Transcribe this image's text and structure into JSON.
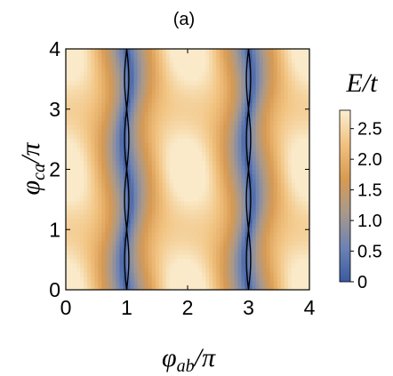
{
  "chart_data": {
    "type": "heatmap",
    "panel_label": "(a)",
    "xlabel": {
      "base": "φ",
      "sub": "ab",
      "rest": "/π"
    },
    "ylabel": {
      "base": "φ",
      "sub": "ca",
      "rest": "/π"
    },
    "colorbar_title": "E/t",
    "xlim": [
      0,
      4
    ],
    "ylim": [
      0,
      4
    ],
    "xticks": [
      "0",
      "1",
      "2",
      "3",
      "4"
    ],
    "yticks": [
      "0",
      "1",
      "2",
      "3",
      "4"
    ],
    "colorbar": {
      "range": [
        0,
        2.8
      ],
      "ticks": [
        "0",
        "0.5",
        "1.0",
        "1.5",
        "2.0",
        "2.5"
      ],
      "colormap": [
        "#3b5aa1",
        "#6d83b3",
        "#a8998c",
        "#d89a52",
        "#f1c27f",
        "#fbeed0"
      ]
    },
    "description_values": {
      "minimum_bands_x": [
        1,
        3
      ],
      "max_value_approx": 2.75,
      "contour": "E = 0 lines wiggling around x = 1 and x = 3"
    }
  }
}
